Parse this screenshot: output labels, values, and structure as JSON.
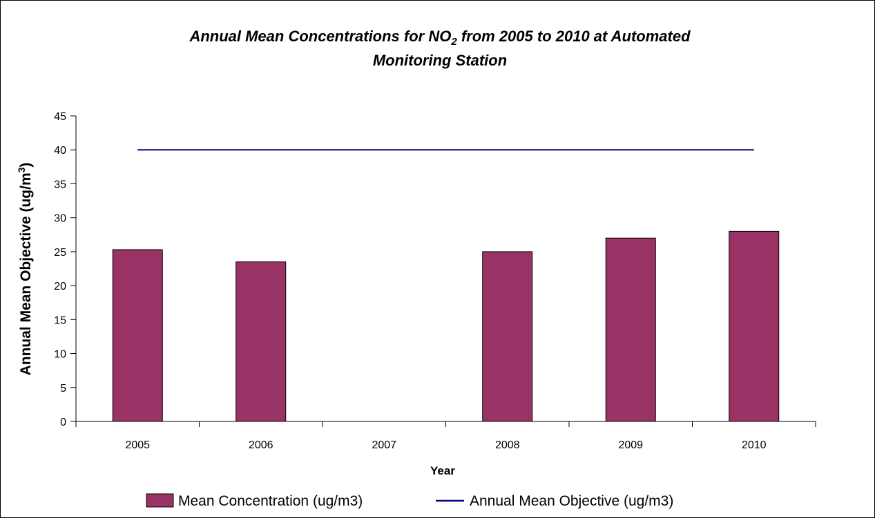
{
  "chart_data": {
    "type": "bar",
    "title_line1_prefix": "Annual Mean Concentrations for NO",
    "title_line1_subscript": "2",
    "title_line1_suffix": " from 2005 to 2010 at Automated",
    "title_line2": "Monitoring Station",
    "xlabel": "Year",
    "ylabel_main": "Annual Mean Objective (ug/m",
    "ylabel_superscript": "3",
    "ylabel_close": ")",
    "categories": [
      "2005",
      "2006",
      "2007",
      "2008",
      "2009",
      "2010"
    ],
    "ylim": [
      0,
      45
    ],
    "yticks": [
      0,
      5,
      10,
      15,
      20,
      25,
      30,
      35,
      40,
      45
    ],
    "grid": false,
    "legend_position": "bottom",
    "series": [
      {
        "name": "Mean Concentration (ug/m3)",
        "kind": "bar",
        "color": "#993366",
        "values": [
          25.3,
          23.5,
          null,
          25.0,
          27.0,
          28.0
        ]
      },
      {
        "name": "Annual Mean Objective (ug/m3)",
        "kind": "line",
        "color": "#000080",
        "values": [
          40,
          40,
          40,
          40,
          40,
          40
        ]
      }
    ]
  }
}
